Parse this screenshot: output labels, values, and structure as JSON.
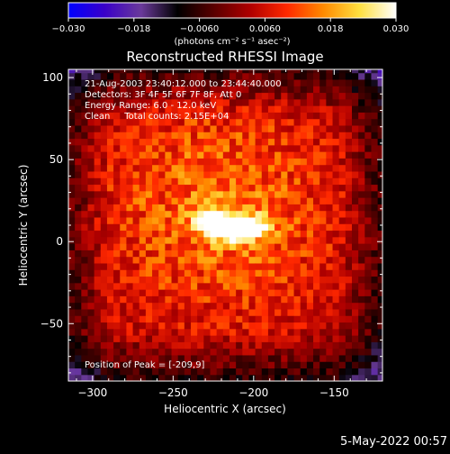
{
  "chart_data": {
    "type": "heatmap",
    "title": "Reconstructed RHESSI Image",
    "xlabel": "Heliocentric X (arcsec)",
    "ylabel": "Heliocentric Y (arcsec)",
    "xlim": [
      -315,
      -120
    ],
    "ylim": [
      -85,
      105
    ],
    "x_ticks": [
      -300,
      -250,
      -200,
      -150
    ],
    "x_tick_labels": [
      "−300",
      "−250",
      "−200",
      "−150"
    ],
    "y_ticks": [
      100,
      50,
      0,
      -50
    ],
    "y_tick_labels": [
      "100",
      "50",
      "0",
      "−50"
    ],
    "colorbar": {
      "min": -0.03,
      "max": 0.03,
      "ticks": [
        -0.03,
        -0.018,
        -0.006,
        0.006,
        0.018,
        0.03
      ],
      "tick_labels": [
        "−0.030",
        "−0.018",
        "−0.0060",
        "0.0060",
        "0.018",
        "0.030"
      ],
      "unit_label": "(photons cm⁻² s⁻¹ asec⁻²)"
    },
    "peak": {
      "x": -209,
      "y": 9
    },
    "colormap": [
      "#0000ff",
      "#3a00c8",
      "#6a3a9a",
      "#000000",
      "#5a0000",
      "#b00000",
      "#ff2800",
      "#ff8a00",
      "#ffe040",
      "#ffffff"
    ],
    "annotations": [
      "21-Aug-2003 23:40:12.000 to 23:44:40.000",
      "Detectors: 3F 4F 5F 6F 7F 8F, Att 0",
      "Energy Range: 6.0 - 12.0 keV",
      "Clean     Total counts: 2.15E+04",
      "Position of Peak = [-209,9]"
    ]
  },
  "footer": {
    "timestamp": "5-May-2022 00:57"
  }
}
